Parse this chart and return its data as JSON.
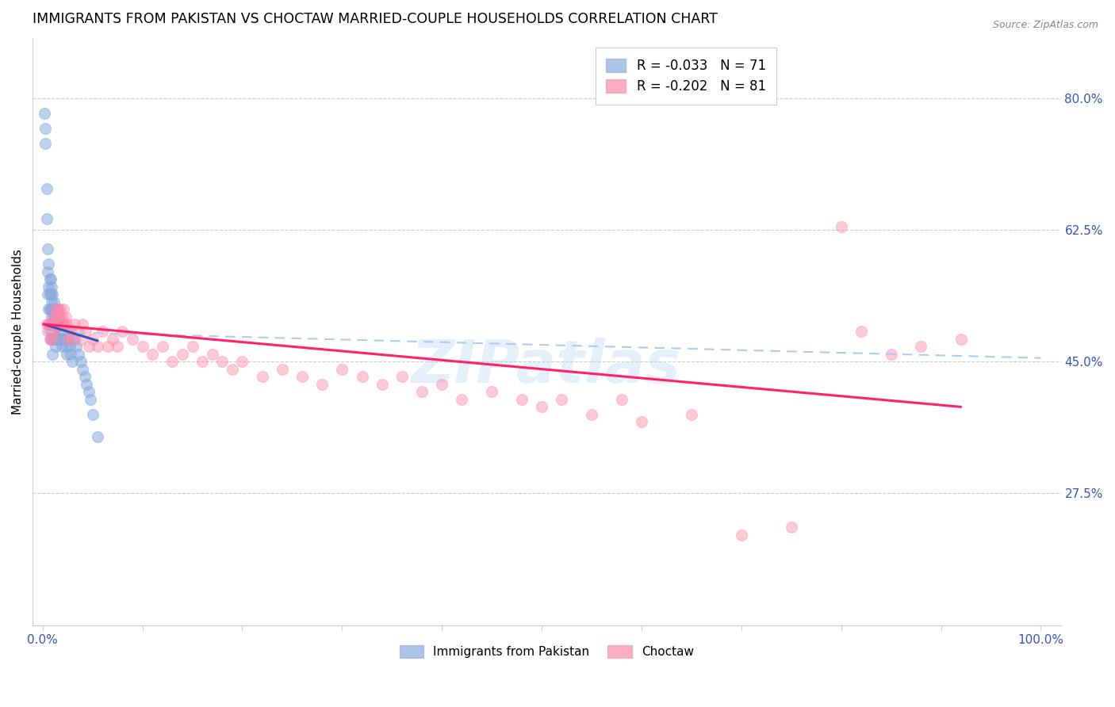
{
  "title": "IMMIGRANTS FROM PAKISTAN VS CHOCTAW MARRIED-COUPLE HOUSEHOLDS CORRELATION CHART",
  "source": "Source: ZipAtlas.com",
  "ylabel": "Married-couple Households",
  "ytick_labels": [
    "80.0%",
    "62.5%",
    "45.0%",
    "27.5%"
  ],
  "ytick_values": [
    0.8,
    0.625,
    0.45,
    0.275
  ],
  "xlim": [
    -0.01,
    1.02
  ],
  "ylim": [
    0.1,
    0.88
  ],
  "legend_r1": "R = -0.033",
  "legend_n1": "N = 71",
  "legend_r2": "R = -0.202",
  "legend_n2": "N = 81",
  "color_blue": "#88AADD",
  "color_pink": "#FF88AA",
  "color_blue_line": "#3355BB",
  "color_pink_line": "#FF2266",
  "color_dashed_line": "#AACCEE",
  "title_fontsize": 12.5,
  "axis_label_fontsize": 11,
  "tick_fontsize": 11,
  "blue_scatter_x": [
    0.002,
    0.003,
    0.003,
    0.004,
    0.004,
    0.005,
    0.005,
    0.005,
    0.006,
    0.006,
    0.006,
    0.007,
    0.007,
    0.007,
    0.007,
    0.008,
    0.008,
    0.008,
    0.008,
    0.008,
    0.009,
    0.009,
    0.009,
    0.009,
    0.01,
    0.01,
    0.01,
    0.01,
    0.01,
    0.011,
    0.011,
    0.011,
    0.012,
    0.012,
    0.012,
    0.013,
    0.013,
    0.013,
    0.014,
    0.014,
    0.015,
    0.015,
    0.016,
    0.016,
    0.017,
    0.017,
    0.018,
    0.018,
    0.019,
    0.019,
    0.02,
    0.021,
    0.022,
    0.023,
    0.024,
    0.025,
    0.026,
    0.027,
    0.028,
    0.03,
    0.032,
    0.034,
    0.036,
    0.038,
    0.04,
    0.042,
    0.044,
    0.046,
    0.048,
    0.05,
    0.055
  ],
  "blue_scatter_y": [
    0.78,
    0.76,
    0.74,
    0.68,
    0.64,
    0.6,
    0.57,
    0.54,
    0.58,
    0.55,
    0.52,
    0.56,
    0.54,
    0.52,
    0.5,
    0.56,
    0.54,
    0.52,
    0.5,
    0.48,
    0.55,
    0.53,
    0.51,
    0.49,
    0.54,
    0.52,
    0.5,
    0.48,
    0.46,
    0.53,
    0.51,
    0.49,
    0.52,
    0.5,
    0.48,
    0.51,
    0.49,
    0.47,
    0.5,
    0.48,
    0.52,
    0.5,
    0.51,
    0.49,
    0.5,
    0.48,
    0.5,
    0.48,
    0.49,
    0.47,
    0.5,
    0.49,
    0.48,
    0.47,
    0.46,
    0.49,
    0.48,
    0.47,
    0.46,
    0.45,
    0.48,
    0.47,
    0.46,
    0.45,
    0.44,
    0.43,
    0.42,
    0.41,
    0.4,
    0.38,
    0.35
  ],
  "pink_scatter_x": [
    0.004,
    0.005,
    0.006,
    0.007,
    0.008,
    0.008,
    0.009,
    0.009,
    0.01,
    0.01,
    0.011,
    0.011,
    0.012,
    0.013,
    0.013,
    0.014,
    0.015,
    0.015,
    0.016,
    0.017,
    0.018,
    0.019,
    0.02,
    0.021,
    0.022,
    0.023,
    0.024,
    0.025,
    0.028,
    0.03,
    0.032,
    0.035,
    0.038,
    0.04,
    0.043,
    0.046,
    0.05,
    0.055,
    0.06,
    0.065,
    0.07,
    0.075,
    0.08,
    0.09,
    0.1,
    0.11,
    0.12,
    0.13,
    0.14,
    0.15,
    0.16,
    0.17,
    0.18,
    0.19,
    0.2,
    0.22,
    0.24,
    0.26,
    0.28,
    0.3,
    0.32,
    0.34,
    0.36,
    0.38,
    0.4,
    0.42,
    0.45,
    0.48,
    0.5,
    0.52,
    0.55,
    0.58,
    0.6,
    0.65,
    0.7,
    0.75,
    0.8,
    0.82,
    0.85,
    0.88,
    0.92
  ],
  "pink_scatter_y": [
    0.5,
    0.49,
    0.5,
    0.48,
    0.5,
    0.49,
    0.5,
    0.48,
    0.5,
    0.49,
    0.51,
    0.49,
    0.5,
    0.52,
    0.5,
    0.51,
    0.52,
    0.5,
    0.51,
    0.5,
    0.52,
    0.51,
    0.5,
    0.52,
    0.5,
    0.51,
    0.5,
    0.48,
    0.49,
    0.48,
    0.5,
    0.49,
    0.48,
    0.5,
    0.49,
    0.47,
    0.48,
    0.47,
    0.49,
    0.47,
    0.48,
    0.47,
    0.49,
    0.48,
    0.47,
    0.46,
    0.47,
    0.45,
    0.46,
    0.47,
    0.45,
    0.46,
    0.45,
    0.44,
    0.45,
    0.43,
    0.44,
    0.43,
    0.42,
    0.44,
    0.43,
    0.42,
    0.43,
    0.41,
    0.42,
    0.4,
    0.41,
    0.4,
    0.39,
    0.4,
    0.38,
    0.4,
    0.37,
    0.38,
    0.22,
    0.23,
    0.63,
    0.49,
    0.46,
    0.47,
    0.48
  ],
  "blue_line_x": [
    0.001,
    0.055
  ],
  "blue_line_y": [
    0.5,
    0.478
  ],
  "pink_line_x": [
    0.001,
    0.92
  ],
  "pink_line_y": [
    0.5,
    0.39
  ],
  "dashed_line_x": [
    0.001,
    1.0
  ],
  "dashed_line_y": [
    0.49,
    0.455
  ]
}
